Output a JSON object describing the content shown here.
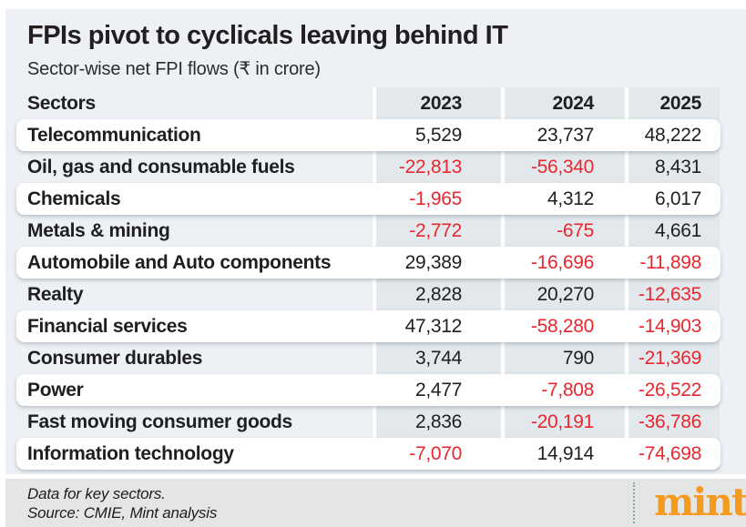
{
  "header": {
    "title": "FPIs pivot to cyclicals leaving behind IT",
    "subtitle": "Sector-wise net FPI flows (₹ in crore)"
  },
  "table": {
    "columns": [
      "Sectors",
      "2023",
      "2024",
      "2025"
    ],
    "rows": [
      {
        "sector": "Telecommunication",
        "values": [
          "5,529",
          "23,737",
          "48,222"
        ]
      },
      {
        "sector": "Oil, gas and consumable fuels",
        "values": [
          "-22,813",
          "-56,340",
          "8,431"
        ]
      },
      {
        "sector": "Chemicals",
        "values": [
          "-1,965",
          "4,312",
          "6,017"
        ]
      },
      {
        "sector": "Metals & mining",
        "values": [
          "-2,772",
          "-675",
          "4,661"
        ]
      },
      {
        "sector": "Automobile and Auto components",
        "values": [
          "29,389",
          "-16,696",
          "-11,898"
        ]
      },
      {
        "sector": "Realty",
        "values": [
          "2,828",
          "20,270",
          "-12,635"
        ]
      },
      {
        "sector": "Financial services",
        "values": [
          "47,312",
          "-58,280",
          "-14,903"
        ]
      },
      {
        "sector": "Consumer durables",
        "values": [
          "3,744",
          "790",
          "-21,369"
        ]
      },
      {
        "sector": "Power",
        "values": [
          "2,477",
          "-7,808",
          "-26,522"
        ]
      },
      {
        "sector": "Fast moving consumer goods",
        "values": [
          "2,836",
          "-20,191",
          "-36,786"
        ]
      },
      {
        "sector": "Information technology",
        "values": [
          "-7,070",
          "14,914",
          "-74,698"
        ]
      }
    ]
  },
  "footer": {
    "note": "Data for key sectors.",
    "source": "Source: CMIE, Mint analysis",
    "brand": "mint"
  },
  "colors": {
    "negative": "#e8272e",
    "positive": "#1f1f1f",
    "background": "#edf1f5",
    "column_band": "#e2e8ec",
    "footer_background": "#e4e5e5",
    "brand_orange": "#f49b1f"
  },
  "chart_data": {
    "type": "table",
    "title": "FPIs pivot to cyclicals leaving behind IT",
    "subtitle": "Sector-wise net FPI flows (₹ in crore)",
    "columns": [
      "Sectors",
      "2023",
      "2024",
      "2025"
    ],
    "rows": [
      [
        "Telecommunication",
        5529,
        23737,
        48222
      ],
      [
        "Oil, gas and consumable fuels",
        -22813,
        -56340,
        8431
      ],
      [
        "Chemicals",
        -1965,
        4312,
        6017
      ],
      [
        "Metals & mining",
        -2772,
        -675,
        4661
      ],
      [
        "Automobile and Auto components",
        29389,
        -16696,
        -11898
      ],
      [
        "Realty",
        2828,
        20270,
        -12635
      ],
      [
        "Financial services",
        47312,
        -58280,
        -14903
      ],
      [
        "Consumer durables",
        3744,
        790,
        -21369
      ],
      [
        "Power",
        2477,
        -7808,
        -26522
      ],
      [
        "Fast moving consumer goods",
        2836,
        -20191,
        -36786
      ],
      [
        "Information technology",
        -7070,
        14914,
        -74698
      ]
    ],
    "notes": [
      "Data for key sectors.",
      "Source: CMIE, Mint analysis"
    ],
    "negative_value_color": "#e8272e"
  }
}
